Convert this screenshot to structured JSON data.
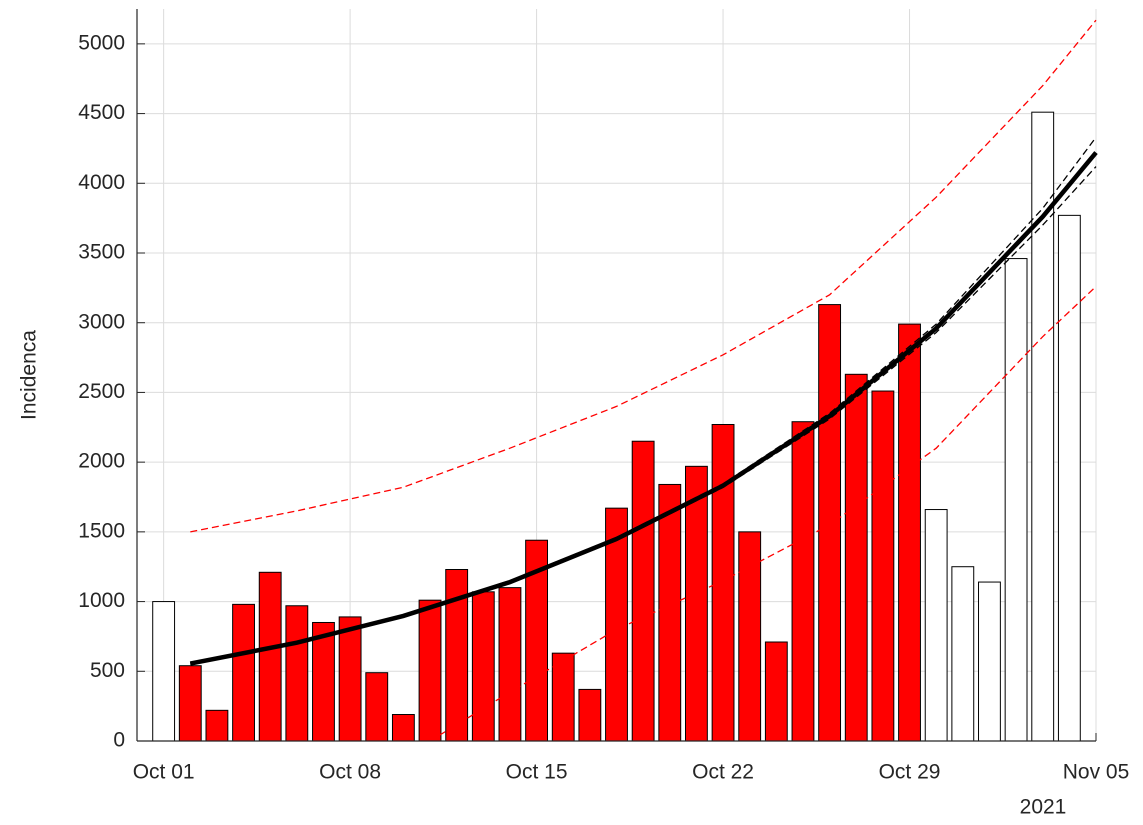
{
  "chart_data": {
    "type": "bar",
    "y_label": "Incidenca",
    "x_year_label": "2021",
    "x": [
      "2021-10-01",
      "2021-10-02",
      "2021-10-03",
      "2021-10-04",
      "2021-10-05",
      "2021-10-06",
      "2021-10-07",
      "2021-10-08",
      "2021-10-09",
      "2021-10-10",
      "2021-10-11",
      "2021-10-12",
      "2021-10-13",
      "2021-10-14",
      "2021-10-15",
      "2021-10-16",
      "2021-10-17",
      "2021-10-18",
      "2021-10-19",
      "2021-10-20",
      "2021-10-21",
      "2021-10-22",
      "2021-10-23",
      "2021-10-24",
      "2021-10-25",
      "2021-10-26",
      "2021-10-27",
      "2021-10-28",
      "2021-10-29",
      "2021-10-30",
      "2021-10-31",
      "2021-11-01",
      "2021-11-02",
      "2021-11-03",
      "2021-11-04"
    ],
    "series": [
      {
        "color": "#ff0000",
        "values": [
          null,
          540,
          220,
          980,
          1210,
          970,
          850,
          890,
          490,
          190,
          1010,
          1230,
          1070,
          1100,
          1440,
          630,
          370,
          1670,
          2150,
          1840,
          1970,
          2270,
          1500,
          710,
          2290,
          3130,
          2630,
          2510,
          2990,
          null,
          null,
          null,
          null,
          null,
          null
        ]
      },
      {
        "color": "#ffffff",
        "values": [
          1000,
          null,
          null,
          null,
          null,
          null,
          null,
          null,
          null,
          null,
          null,
          null,
          null,
          null,
          null,
          null,
          null,
          null,
          null,
          null,
          null,
          null,
          null,
          null,
          null,
          null,
          null,
          null,
          null,
          1660,
          1250,
          1140,
          3460,
          4510,
          3770
        ]
      }
    ],
    "lines": [
      {
        "color": "#ff0000",
        "style": "dashed",
        "x": [
          "2021-10-02",
          "2021-10-06",
          "2021-10-10",
          "2021-10-14",
          "2021-10-18",
          "2021-10-22",
          "2021-10-26",
          "2021-10-30",
          "2021-11-03",
          "2021-11-05"
        ],
        "values": [
          1500,
          1650,
          1820,
          2100,
          2400,
          2770,
          3200,
          3900,
          4700,
          5170
        ]
      },
      {
        "color": "#ff0000",
        "style": "dashed",
        "x": [
          "2021-10-11",
          "2021-10-14",
          "2021-10-18",
          "2021-10-22",
          "2021-10-26",
          "2021-10-30",
          "2021-11-03",
          "2021-11-05"
        ],
        "values": [
          0,
          350,
          800,
          1150,
          1550,
          2100,
          2900,
          3260
        ]
      },
      {
        "color": "#000000",
        "style": "dashed",
        "x": [
          "2021-10-02",
          "2021-10-06",
          "2021-10-10",
          "2021-10-14",
          "2021-10-18",
          "2021-10-22",
          "2021-10-26",
          "2021-10-30",
          "2021-11-03",
          "2021-11-05"
        ],
        "values": [
          560,
          710,
          905,
          1150,
          1460,
          1845,
          2350,
          2990,
          3820,
          4330
        ]
      },
      {
        "color": "#000000",
        "style": "dashed",
        "x": [
          "2021-10-02",
          "2021-10-06",
          "2021-10-10",
          "2021-10-14",
          "2021-10-18",
          "2021-10-22",
          "2021-10-26",
          "2021-10-30",
          "2021-11-03",
          "2021-11-05"
        ],
        "values": [
          550,
          700,
          890,
          1130,
          1438,
          1819,
          2310,
          2930,
          3700,
          4120
        ]
      },
      {
        "color": "#000000",
        "style": "bold",
        "x": [
          "2021-10-02",
          "2021-10-06",
          "2021-10-10",
          "2021-10-14",
          "2021-10-18",
          "2021-10-22",
          "2021-10-26",
          "2021-10-30",
          "2021-11-03",
          "2021-11-05"
        ],
        "values": [
          555,
          705,
          897,
          1140,
          1449,
          1832,
          2330,
          2960,
          3760,
          4220
        ]
      }
    ],
    "xlim": [
      "2021-09-30",
      "2021-11-05"
    ],
    "xticks": [
      {
        "value": "2021-10-01",
        "label": "Oct 01"
      },
      {
        "value": "2021-10-08",
        "label": "Oct 08"
      },
      {
        "value": "2021-10-15",
        "label": "Oct 15"
      },
      {
        "value": "2021-10-22",
        "label": "Oct 22"
      },
      {
        "value": "2021-10-29",
        "label": "Oct 29"
      },
      {
        "value": "2021-11-05",
        "label": "Nov 05"
      }
    ],
    "ylim": [
      0,
      5250
    ],
    "yticks": [
      0,
      500,
      1000,
      1500,
      2000,
      2500,
      3000,
      3500,
      4000,
      4500,
      5000
    ],
    "grid": true
  }
}
